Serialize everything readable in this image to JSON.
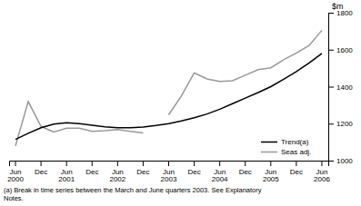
{
  "chart_data": {
    "type": "line",
    "y_label": "$m",
    "categories": [
      "Jun\n2000",
      null,
      "Dec",
      null,
      "Jun\n2001",
      null,
      "Dec",
      null,
      "Jun\n2002",
      null,
      "Dec",
      null,
      "Jun\n2003",
      null,
      "Dec",
      null,
      "Jun\n2004",
      null,
      "Dec",
      null,
      "Jun\n2005",
      null,
      "Dec",
      null,
      "Jun\n2006"
    ],
    "series": [
      {
        "name": "Trend(a)",
        "color": "#000000",
        "values": [
          1115,
          1148,
          1178,
          1198,
          1205,
          1200,
          1192,
          1183,
          1178,
          1178,
          1182,
          1190,
          1200,
          1215,
          1232,
          1252,
          1278,
          1308,
          1338,
          1368,
          1400,
          1440,
          1482,
          1528,
          1580
        ]
      },
      {
        "name": "Seas adj.",
        "color": "#999999",
        "values": [
          1080,
          1320,
          1185,
          1155,
          1175,
          1175,
          1158,
          1162,
          1168,
          1158,
          1150,
          null,
          1248,
          1350,
          1475,
          1442,
          1428,
          1432,
          1462,
          1492,
          1502,
          1545,
          1582,
          1622,
          1705
        ]
      }
    ],
    "ylim": [
      1000,
      1800
    ],
    "yticks": [
      1000,
      1200,
      1400,
      1600,
      1800
    ],
    "grid": false,
    "legend": "lower right",
    "annotations": [
      "(a) Break in time series between the March and June quarters 2003. See Explanatory\nNotes."
    ]
  }
}
